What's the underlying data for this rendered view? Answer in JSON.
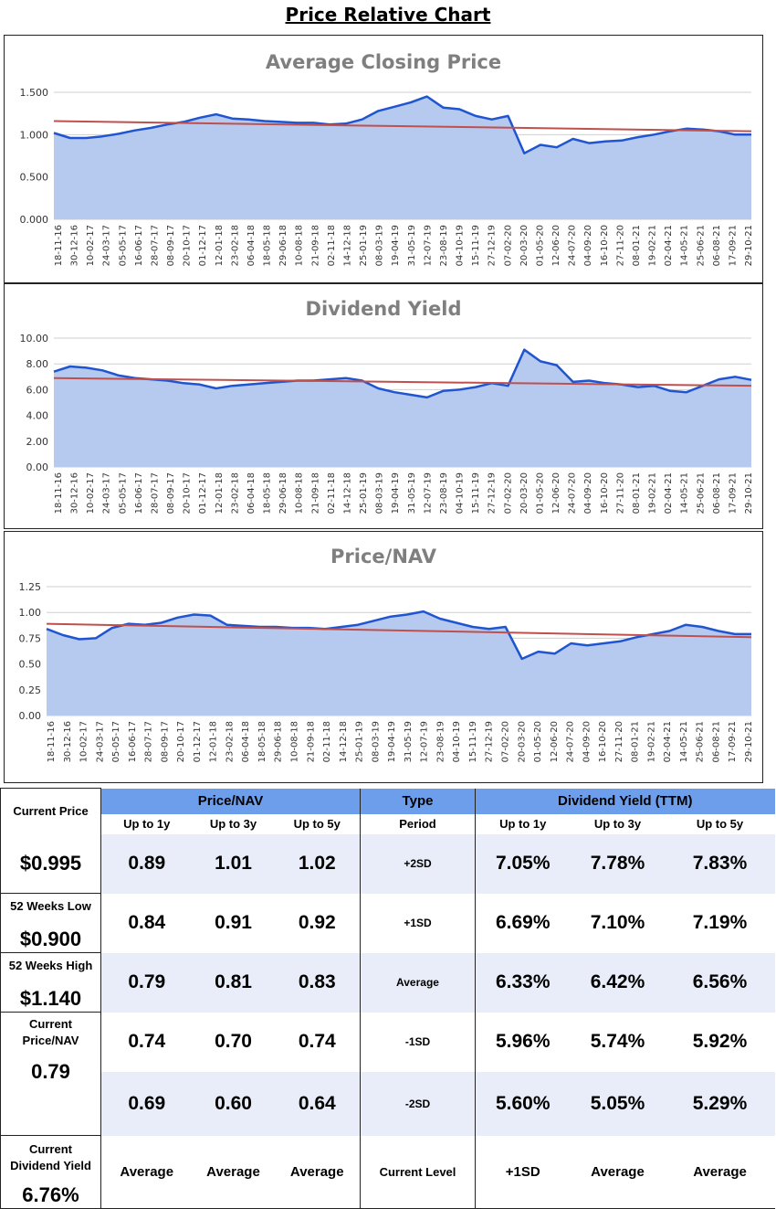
{
  "page_title": "Price Relative Chart",
  "colors": {
    "area": "#b6c9ef",
    "line": "#1f55d0",
    "trend": "#c0504d",
    "header": "#6d9eeb",
    "band": "#e8edf9"
  },
  "x_labels": [
    "18-11-16",
    "30-12-16",
    "10-02-17",
    "24-03-17",
    "05-05-17",
    "16-06-17",
    "28-07-17",
    "08-09-17",
    "20-10-17",
    "01-12-17",
    "12-01-18",
    "23-02-18",
    "06-04-18",
    "18-05-18",
    "29-06-18",
    "10-08-18",
    "21-09-18",
    "02-11-18",
    "14-12-18",
    "25-01-19",
    "08-03-19",
    "19-04-19",
    "31-05-19",
    "12-07-19",
    "23-08-19",
    "04-10-19",
    "15-11-19",
    "27-12-19",
    "07-02-20",
    "20-03-20",
    "01-05-20",
    "12-06-20",
    "24-07-20",
    "04-09-20",
    "16-10-20",
    "27-11-20",
    "08-01-21",
    "19-02-21",
    "02-04-21",
    "14-05-21",
    "25-06-21",
    "06-08-21",
    "17-09-21",
    "29-10-21"
  ],
  "chart_data": [
    {
      "type": "area",
      "title": "Average Closing Price",
      "y_ticks": [
        "1.500",
        "1.000",
        "0.500",
        "0.000"
      ],
      "ylim": [
        0,
        1.5
      ],
      "trend": [
        1.16,
        1.04
      ],
      "values": [
        1.02,
        0.96,
        0.96,
        0.98,
        1.01,
        1.05,
        1.08,
        1.12,
        1.15,
        1.2,
        1.24,
        1.19,
        1.18,
        1.16,
        1.15,
        1.14,
        1.14,
        1.12,
        1.13,
        1.18,
        1.28,
        1.33,
        1.38,
        1.45,
        1.32,
        1.3,
        1.22,
        1.18,
        1.22,
        0.78,
        0.88,
        0.85,
        0.95,
        0.9,
        0.92,
        0.93,
        0.97,
        1.0,
        1.04,
        1.07,
        1.06,
        1.04,
        1.0,
        1.0
      ]
    },
    {
      "type": "area",
      "title": "Dividend Yield",
      "y_ticks": [
        "10.00",
        "8.00",
        "6.00",
        "4.00",
        "2.00",
        "0.00"
      ],
      "ylim": [
        0,
        10
      ],
      "trend": [
        6.9,
        6.3
      ],
      "values": [
        7.4,
        7.8,
        7.7,
        7.5,
        7.1,
        6.9,
        6.8,
        6.7,
        6.5,
        6.4,
        6.1,
        6.3,
        6.4,
        6.5,
        6.6,
        6.7,
        6.7,
        6.8,
        6.9,
        6.7,
        6.1,
        5.8,
        5.6,
        5.4,
        5.9,
        6.0,
        6.2,
        6.5,
        6.3,
        9.1,
        8.2,
        7.9,
        6.6,
        6.7,
        6.5,
        6.4,
        6.2,
        6.3,
        5.9,
        5.8,
        6.3,
        6.8,
        7.0,
        6.76
      ]
    },
    {
      "type": "area",
      "title": "Price/NAV",
      "y_ticks": [
        "1.25",
        "1.00",
        "0.75",
        "0.50",
        "0.25",
        "0.00"
      ],
      "ylim": [
        0,
        1.25
      ],
      "trend": [
        0.89,
        0.76
      ],
      "values": [
        0.84,
        0.78,
        0.74,
        0.75,
        0.85,
        0.89,
        0.88,
        0.9,
        0.95,
        0.98,
        0.97,
        0.88,
        0.87,
        0.86,
        0.86,
        0.85,
        0.85,
        0.84,
        0.86,
        0.88,
        0.92,
        0.96,
        0.98,
        1.01,
        0.94,
        0.9,
        0.86,
        0.84,
        0.86,
        0.55,
        0.62,
        0.6,
        0.7,
        0.68,
        0.7,
        0.72,
        0.76,
        0.79,
        0.82,
        0.88,
        0.86,
        0.82,
        0.79,
        0.79
      ]
    }
  ],
  "left_panel": {
    "current_price_label": "Current Price",
    "current_price_value": "$0.995",
    "low_label": "52 Weeks Low",
    "low_value": "$0.900",
    "high_label": "52 Weeks High",
    "high_value": "$1.140",
    "pnav_label": "Current Price/NAV",
    "pnav_value": "0.79",
    "dy_label": "Current Dividend Yield",
    "dy_value": "6.76%"
  },
  "table": {
    "pnav_header": "Price/NAV",
    "type_header": "Type",
    "dy_header": "Dividend Yield (TTM)",
    "sub_1y": "Up to 1y",
    "sub_3y": "Up to 3y",
    "sub_5y": "Up to 5y",
    "sub_period": "Period",
    "rows": [
      {
        "pnav": [
          "0.89",
          "1.01",
          "1.02"
        ],
        "type": "+2SD",
        "dy": [
          "7.05%",
          "7.78%",
          "7.83%"
        ]
      },
      {
        "pnav": [
          "0.84",
          "0.91",
          "0.92"
        ],
        "type": "+1SD",
        "dy": [
          "6.69%",
          "7.10%",
          "7.19%"
        ]
      },
      {
        "pnav": [
          "0.79",
          "0.81",
          "0.83"
        ],
        "type": "Average",
        "dy": [
          "6.33%",
          "6.42%",
          "6.56%"
        ]
      },
      {
        "pnav": [
          "0.74",
          "0.70",
          "0.74"
        ],
        "type": "-1SD",
        "dy": [
          "5.96%",
          "5.74%",
          "5.92%"
        ]
      },
      {
        "pnav": [
          "0.69",
          "0.60",
          "0.64"
        ],
        "type": "-2SD",
        "dy": [
          "5.60%",
          "5.05%",
          "5.29%"
        ]
      }
    ],
    "footer": {
      "pnav": [
        "Average",
        "Average",
        "Average"
      ],
      "type": "Current Level",
      "dy": [
        "+1SD",
        "Average",
        "Average"
      ]
    }
  }
}
